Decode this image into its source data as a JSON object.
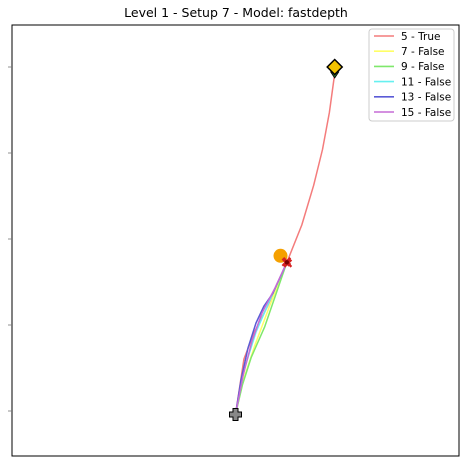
{
  "chart_data": {
    "type": "line",
    "title": "Level 1 - Setup 7 - Model: fastdepth",
    "xlabel": "",
    "ylabel": "",
    "grid": false,
    "legend_position": "top-right",
    "series": [
      {
        "name": "5 - True",
        "color": "#f47c7c",
        "points": [
          [
            235.5,
            414.5
          ],
          [
            243.9,
            359.2
          ],
          [
            253.8,
            333.3
          ],
          [
            267.6,
            306.2
          ],
          [
            286.9,
            262.3
          ],
          [
            301.8,
            225.0
          ],
          [
            313.7,
            185.2
          ],
          [
            322.5,
            149.5
          ],
          [
            329.4,
            112.4
          ],
          [
            334.7,
            73.6
          ]
        ]
      },
      {
        "name": "7 - False",
        "color": "#ffff66",
        "points": [
          [
            235.5,
            414.5
          ],
          [
            243.0,
            381.0
          ],
          [
            255.0,
            345.0
          ],
          [
            270.0,
            305.0
          ],
          [
            286.9,
            262.3
          ]
        ]
      },
      {
        "name": "9 - False",
        "color": "#7fe86b",
        "points": [
          [
            235.5,
            414.5
          ],
          [
            242.5,
            384.6
          ],
          [
            251.3,
            357.2
          ],
          [
            264.7,
            326.8
          ],
          [
            286.9,
            262.3
          ]
        ]
      },
      {
        "name": "11 - False",
        "color": "#66f0f0",
        "points": [
          [
            235.5,
            414.5
          ],
          [
            244.0,
            370.0
          ],
          [
            256.0,
            332.0
          ],
          [
            270.0,
            300.0
          ],
          [
            286.9,
            262.3
          ]
        ]
      },
      {
        "name": "13 - False",
        "color": "#5b5bd6",
        "points": [
          [
            235.5,
            414.5
          ],
          [
            241.0,
            380.0
          ],
          [
            248.0,
            348.0
          ],
          [
            256.0,
            323.0
          ],
          [
            264.0,
            306.0
          ],
          [
            273.0,
            293.0
          ],
          [
            286.9,
            262.3
          ]
        ]
      },
      {
        "name": "15 - False",
        "color": "#c66bd6",
        "points": [
          [
            235.5,
            414.5
          ],
          [
            243.0,
            376.0
          ],
          [
            252.0,
            341.0
          ],
          [
            262.0,
            313.0
          ],
          [
            275.0,
            288.0
          ],
          [
            286.9,
            262.3
          ]
        ]
      }
    ],
    "markers": {
      "start": {
        "shape": "cross",
        "color": "#888888",
        "x": 235.5,
        "y": 414.5
      },
      "goal": {
        "shape": "diamond",
        "color": "#f2c200",
        "x": 334.7,
        "y": 67.0
      },
      "goal_tail": {
        "shape": "triangle",
        "color": "#2d6a2d",
        "x": 334.7,
        "y": 74.0
      },
      "orange_point": {
        "shape": "circle",
        "color": "#f5a000",
        "x": 280.5,
        "y": 255.8
      },
      "red_points": {
        "shape": "x",
        "color": "#d62222",
        "x": 286.9,
        "y": 262.3
      }
    }
  }
}
